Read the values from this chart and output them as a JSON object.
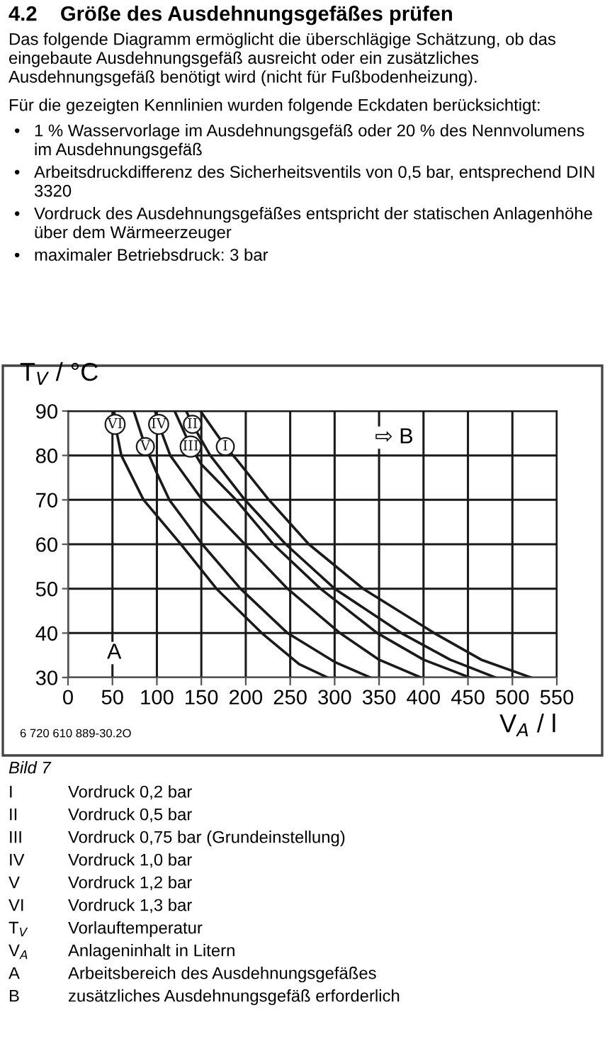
{
  "chart_data": {
    "type": "line",
    "title": "4.2    Größe des Ausdehnungsgefäßes prüfen",
    "subtitle": "Das folgende Diagramm ermöglicht die überschlägige Schätzung, ob das eingebaute Ausdehnungsgefäß ausreicht oder ein zusätzliches Ausdehnungsgefäß benötigt wird (nicht für Fußbodenheizung).",
    "xlabel": "V$_{A}$ / l",
    "ylabel": "T$_{V}$ / °C",
    "xlim": [
      0,
      550
    ],
    "ylim": [
      30,
      90
    ],
    "xticks": [
      0,
      50,
      100,
      150,
      200,
      250,
      300,
      350,
      400,
      450,
      500,
      550
    ],
    "yticks": [
      30,
      40,
      50,
      60,
      70,
      80,
      90
    ],
    "grid": true,
    "marker": "none",
    "line_style": "solid",
    "series": [
      {
        "name": "I",
        "color": "#1a1a1a",
        "x": [
          149,
          177,
          190,
          226,
          271,
          332,
          412,
          465,
          521
        ],
        "values": [
          90,
          82,
          79,
          70,
          60,
          50,
          40,
          34,
          30
        ]
      },
      {
        "name": "II",
        "color": "#1a1a1a",
        "x": [
          133,
          140,
          160,
          199,
          245,
          300,
          375,
          430,
          481
        ],
        "values": [
          90,
          87,
          80,
          70,
          60,
          50,
          40,
          34,
          30
        ]
      },
      {
        "name": "III",
        "color": "#1a1a1a",
        "x": [
          120,
          138,
          150,
          189,
          231,
          284,
          348,
          400,
          452
        ],
        "values": [
          90,
          82,
          78,
          70,
          60,
          50,
          40,
          34,
          30
        ]
      },
      {
        "name": "IV",
        "color": "#1a1a1a",
        "x": [
          98,
          102,
          115,
          151,
          199,
          247,
          306,
          350,
          397
        ],
        "values": [
          90,
          87,
          80,
          70,
          60,
          50,
          40,
          34,
          30
        ]
      },
      {
        "name": "V",
        "color": "#1a1a1a",
        "x": [
          74,
          87,
          100,
          114,
          151,
          194,
          247,
          300,
          340
        ],
        "values": [
          90,
          82,
          76,
          70,
          60,
          50,
          40,
          33.5,
          30
        ]
      },
      {
        "name": "VI",
        "color": "#1a1a1a",
        "x": [
          52,
          53,
          60,
          85,
          127,
          167,
          218,
          260,
          292
        ],
        "values": [
          90,
          87,
          80,
          70,
          60,
          50,
          40,
          33,
          30
        ]
      }
    ],
    "annotations": [
      "Für die gezeigten Kennlinien wurden folgende Eckdaten berücksichtigt:",
      "•\t1 % Wasservorlage im Ausdehnungsgefäß oder 20 % des Nennvolumens im Ausdehnungsgefäß",
      "•\tArbeitsdruckdifferenz des Sicherheitsventils von 0,5 bar, entsprechend DIN 3320",
      "•\tVordruck des Ausdehnungsgefäßes entspricht der statischen Anlagenhöhe über dem Wärmeerzeuger",
      "•\tmaximaler Betriebsdruck: 3 bar",
      "6 720 610 889-30.2O",
      "Bild 7",
      "I\tVordruck 0,2 bar",
      "II\tVordruck 0,5 bar",
      "III\tVordruck 0,75 bar (Grundeinstellung)",
      "IV\tVordruck 1,0 bar",
      "V\tVordruck 1,2 bar",
      "VI\tVordruck 1,3 bar",
      "T$_{V}$\tVorlauftemperatur",
      "V$_{A}$\tAnlageninhalt in Litern",
      "A\tArbeitsbereich des Ausdehnungsgefäßes",
      "B\tzusätzliches Ausdehnungsgefäß erforderlich",
      {
        "text": "A",
        "x": 52,
        "y": 35.5
      },
      {
        "text": "⇨ B",
        "x": 367,
        "y": 84
      }
    ]
  }
}
